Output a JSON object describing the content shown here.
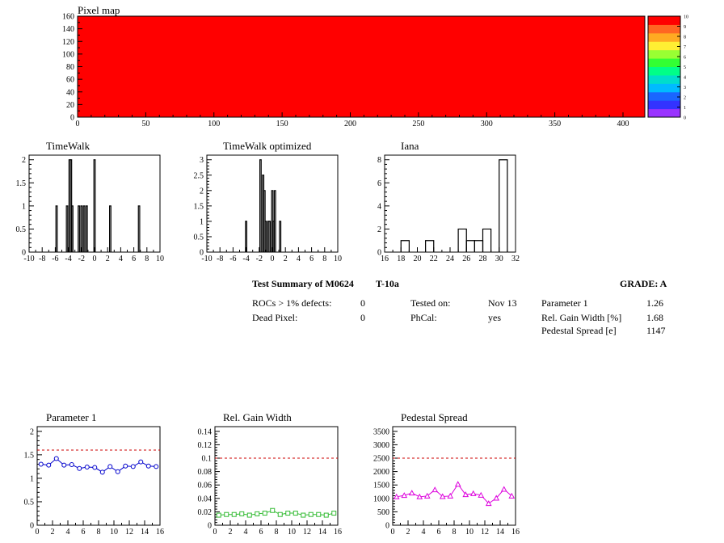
{
  "pixel_map": {
    "title": "Pixel map",
    "fill_color": "#ff0000",
    "palette_labels": [
      "0",
      "1",
      "2",
      "3",
      "4",
      "5",
      "6",
      "7",
      "8",
      "9",
      "10"
    ],
    "palette_colors": [
      "#9933ff",
      "#3333ff",
      "#1a66ff",
      "#00bbff",
      "#00ddcc",
      "#00ff88",
      "#33ff33",
      "#99ff33",
      "#ffee33",
      "#ffaa22",
      "#ff6622",
      "#ff0000"
    ]
  },
  "summary": {
    "title": "Test Summary of M0624",
    "test": "T-10a",
    "grade_label": "GRADE:  A",
    "rows": [
      {
        "label": "ROCs > 1% defects:",
        "value": "0"
      },
      {
        "label": "Dead Pixel:",
        "value": "0"
      }
    ],
    "tested_on_label": "Tested on:",
    "tested_on_value": "Nov 13",
    "phcal_label": "PhCal:",
    "phcal_value": "yes",
    "params": [
      {
        "label": "Parameter 1",
        "value": "1.26"
      },
      {
        "label": "Rel. Gain Width [%]",
        "value": "1.68"
      },
      {
        "label": "Pedestal Spread [e]",
        "value": "1147"
      }
    ]
  },
  "chart_data": [
    {
      "id": "pixelmap",
      "type": "heatmap",
      "title": "Pixel map",
      "xlim": [
        0,
        416
      ],
      "ylim": [
        0,
        160
      ],
      "xticks": [
        0,
        50,
        100,
        150,
        200,
        250,
        300,
        350,
        400
      ],
      "yticks": [
        0,
        20,
        40,
        60,
        80,
        100,
        120,
        140,
        160
      ],
      "zlim": [
        0,
        10
      ],
      "zticks": [
        0,
        1,
        2,
        3,
        4,
        5,
        6,
        7,
        8,
        9,
        10
      ],
      "uniform_value": 10
    },
    {
      "id": "timewalk",
      "type": "bar",
      "title": "TimeWalk",
      "xlim": [
        -10,
        10
      ],
      "ylim": [
        0,
        2.1
      ],
      "xticks": [
        -10,
        -8,
        -6,
        -4,
        -2,
        0,
        2,
        4,
        6,
        8,
        10
      ],
      "yticks": [
        0,
        0.5,
        1,
        1.5,
        2
      ],
      "bin_width": 0.2,
      "bins": [
        {
          "x": -5.8,
          "y": 1
        },
        {
          "x": -4.2,
          "y": 1
        },
        {
          "x": -3.8,
          "y": 2
        },
        {
          "x": -3.6,
          "y": 2
        },
        {
          "x": -3.4,
          "y": 1
        },
        {
          "x": -2.4,
          "y": 1
        },
        {
          "x": -2.0,
          "y": 1
        },
        {
          "x": -1.6,
          "y": 1
        },
        {
          "x": -1.2,
          "y": 1
        },
        {
          "x": 0,
          "y": 2
        },
        {
          "x": 2.4,
          "y": 1
        },
        {
          "x": 6.8,
          "y": 1
        }
      ]
    },
    {
      "id": "timewalk_opt",
      "type": "bar",
      "title": "TimeWalk optimized",
      "xlim": [
        -10,
        10
      ],
      "ylim": [
        0,
        3.15
      ],
      "xticks": [
        -10,
        -8,
        -6,
        -4,
        -2,
        0,
        2,
        4,
        6,
        8,
        10
      ],
      "yticks": [
        0,
        0.5,
        1,
        1.5,
        2,
        2.5,
        3
      ],
      "bin_width": 0.2,
      "bins": [
        {
          "x": -4.0,
          "y": 1
        },
        {
          "x": -1.8,
          "y": 3
        },
        {
          "x": -1.4,
          "y": 2.5
        },
        {
          "x": -1.2,
          "y": 2
        },
        {
          "x": -1.0,
          "y": 1
        },
        {
          "x": -0.6,
          "y": 1
        },
        {
          "x": -0.4,
          "y": 1
        },
        {
          "x": 0,
          "y": 2
        },
        {
          "x": 0.2,
          "y": 1
        },
        {
          "x": 0.4,
          "y": 2
        },
        {
          "x": 1.2,
          "y": 1
        }
      ]
    },
    {
      "id": "iana",
      "type": "bar",
      "title": "Iana",
      "xlim": [
        16,
        32
      ],
      "ylim": [
        0,
        8.4
      ],
      "xticks": [
        16,
        18,
        20,
        22,
        24,
        26,
        28,
        30,
        32
      ],
      "yticks": [
        0,
        2,
        4,
        6,
        8
      ],
      "bin_width": 1,
      "bins": [
        {
          "x": 18.5,
          "y": 1
        },
        {
          "x": 21.5,
          "y": 1
        },
        {
          "x": 25.5,
          "y": 2
        },
        {
          "x": 26.5,
          "y": 1
        },
        {
          "x": 27.5,
          "y": 1
        },
        {
          "x": 28.5,
          "y": 2
        },
        {
          "x": 30.5,
          "y": 8
        }
      ]
    },
    {
      "id": "param1",
      "type": "line",
      "title": "Parameter 1",
      "xlim": [
        0,
        16
      ],
      "ylim": [
        0,
        2.1
      ],
      "xticks": [
        0,
        2,
        4,
        6,
        8,
        10,
        12,
        14,
        16
      ],
      "yticks": [
        0,
        0.5,
        1,
        1.5,
        2
      ],
      "threshold": 1.6,
      "marker": "circle",
      "color": "#0000cc",
      "x": [
        0.5,
        1.5,
        2.5,
        3.5,
        4.5,
        5.5,
        6.5,
        7.5,
        8.5,
        9.5,
        10.5,
        11.5,
        12.5,
        13.5,
        14.5,
        15.5
      ],
      "y": [
        1.3,
        1.28,
        1.42,
        1.28,
        1.29,
        1.21,
        1.24,
        1.23,
        1.13,
        1.25,
        1.14,
        1.26,
        1.25,
        1.35,
        1.26,
        1.25
      ]
    },
    {
      "id": "gainwidth",
      "type": "line",
      "title": "Rel. Gain Width",
      "xlim": [
        0,
        16
      ],
      "ylim": [
        0,
        0.147
      ],
      "xticks": [
        0,
        2,
        4,
        6,
        8,
        10,
        12,
        14,
        16
      ],
      "yticks": [
        0,
        0.02,
        0.04,
        0.06,
        0.08,
        0.1,
        0.12,
        0.14
      ],
      "threshold": 0.1,
      "marker": "square",
      "color": "#33bb33",
      "x": [
        0.5,
        1.5,
        2.5,
        3.5,
        4.5,
        5.5,
        6.5,
        7.5,
        8.5,
        9.5,
        10.5,
        11.5,
        12.5,
        13.5,
        14.5,
        15.5
      ],
      "y": [
        0.015,
        0.016,
        0.016,
        0.017,
        0.015,
        0.017,
        0.018,
        0.022,
        0.016,
        0.018,
        0.018,
        0.015,
        0.016,
        0.016,
        0.015,
        0.018
      ]
    },
    {
      "id": "pedestal",
      "type": "line",
      "title": "Pedestal Spread",
      "xlim": [
        0,
        16
      ],
      "ylim": [
        0,
        3675
      ],
      "xticks": [
        0,
        2,
        4,
        6,
        8,
        10,
        12,
        14,
        16
      ],
      "yticks": [
        0,
        500,
        1000,
        1500,
        2000,
        2500,
        3000,
        3500
      ],
      "threshold": 2500,
      "marker": "triangle",
      "color": "#dd00dd",
      "x": [
        0.5,
        1.5,
        2.5,
        3.5,
        4.5,
        5.5,
        6.5,
        7.5,
        8.5,
        9.5,
        10.5,
        11.5,
        12.5,
        13.5,
        14.5,
        15.5
      ],
      "y": [
        1060,
        1110,
        1200,
        1060,
        1090,
        1320,
        1070,
        1090,
        1530,
        1140,
        1180,
        1120,
        810,
        1010,
        1340,
        1090
      ]
    }
  ]
}
